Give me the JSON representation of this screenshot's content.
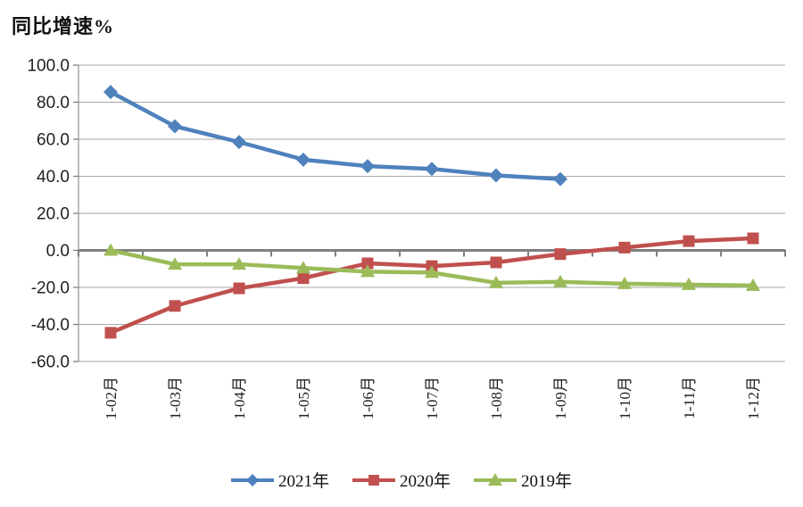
{
  "title": "同比增速%",
  "chart_data": {
    "type": "line",
    "title": "同比增速%",
    "categories": [
      "1-02月",
      "1-03月",
      "1-04月",
      "1-05月",
      "1-06月",
      "1-07月",
      "1-08月",
      "1-09月",
      "1-10月",
      "1-11月",
      "1-12月"
    ],
    "yticks": [
      "100.0",
      "80.0",
      "60.0",
      "40.0",
      "20.0",
      "0.0",
      "-20.0",
      "-40.0",
      "-60.0"
    ],
    "ylim": [
      -60,
      100
    ],
    "grid": true,
    "legend_position": "bottom",
    "zero_axis_emphasized": true,
    "series": [
      {
        "name": "2021年",
        "color": "#4F81BD",
        "marker": "diamond",
        "values": [
          85.5,
          67.0,
          58.5,
          49.0,
          45.5,
          44.0,
          40.5,
          38.5
        ]
      },
      {
        "name": "2020年",
        "color": "#C0504D",
        "marker": "square",
        "values": [
          -44.5,
          -30.0,
          -20.5,
          -15.0,
          -7.0,
          -8.5,
          -6.5,
          -2.0,
          1.5,
          5.0,
          6.5
        ]
      },
      {
        "name": "2019年",
        "color": "#9BBB59",
        "marker": "triangle",
        "values": [
          0.0,
          -7.5,
          -7.5,
          -9.5,
          -11.5,
          -12.0,
          -17.5,
          -17.0,
          -18.0,
          -18.5,
          -19.0
        ]
      }
    ],
    "colors": {
      "gridline": "#A6A6A6",
      "axis_line": "#9B9B9B",
      "zero_axis": "#7F7F7F",
      "tick_text": "#1F1F1F",
      "background": "#FFFFFF"
    }
  }
}
